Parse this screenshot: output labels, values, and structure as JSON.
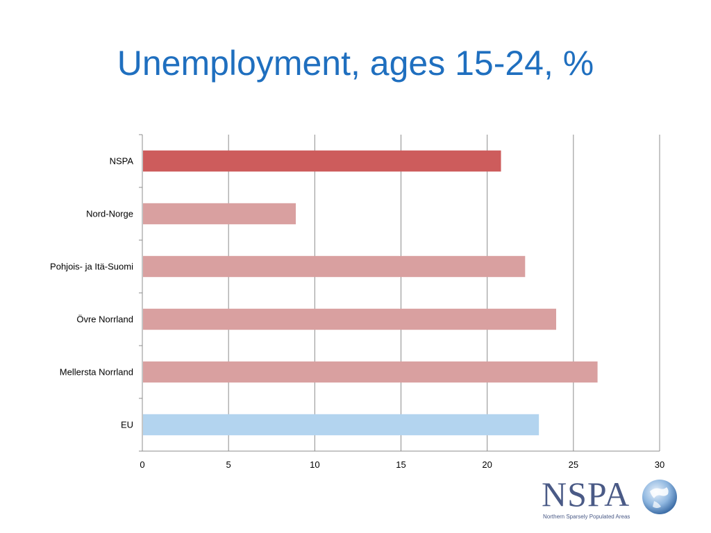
{
  "slide": {
    "title": "Unemployment, ages 15-24, %"
  },
  "logo": {
    "name": "NSPA",
    "subtitle": "Northern Sparsely Populated Areas"
  },
  "chart_data": {
    "type": "bar",
    "orientation": "horizontal",
    "categories": [
      "NSPA",
      "Nord-Norge",
      "Pohjois- ja Itä-Suomi",
      "Övre Norrland",
      "Mellersta Norrland",
      "EU"
    ],
    "values": [
      20.8,
      8.9,
      22.2,
      24.0,
      26.4,
      23.0
    ],
    "bar_colors": [
      "#cd5c5c",
      "#d9a0a0",
      "#d9a0a0",
      "#d9a0a0",
      "#d9a0a0",
      "#b3d4ef"
    ],
    "xlim": [
      0,
      30
    ],
    "xticks": [
      0,
      5,
      10,
      15,
      20,
      25,
      30
    ],
    "grid": true,
    "legend": "none",
    "title": "",
    "xlabel": "",
    "ylabel": ""
  }
}
